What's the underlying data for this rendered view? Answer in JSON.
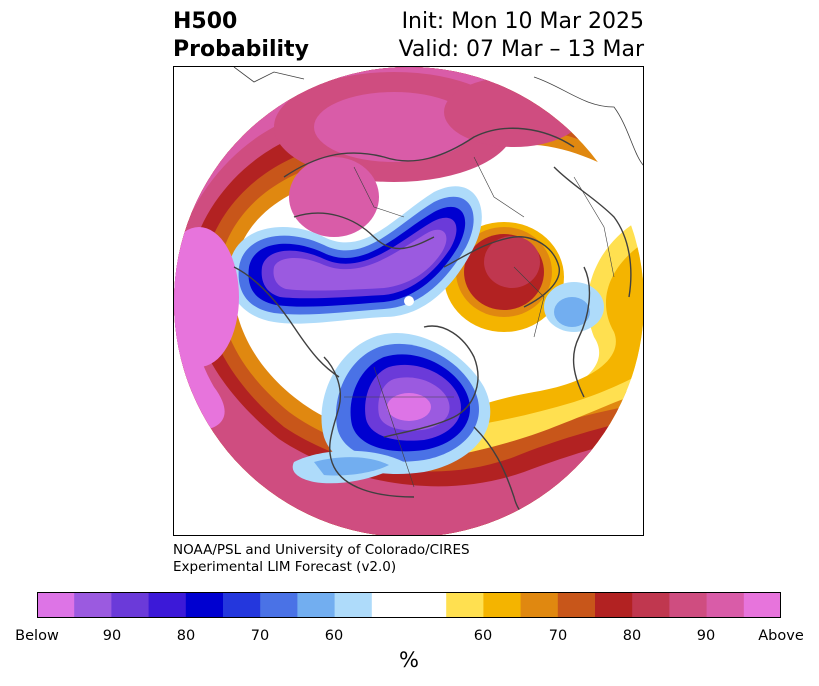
{
  "title": {
    "left_line1": "H500",
    "left_line2": "Probability",
    "right_line1": "Init: Mon 10 Mar 2025",
    "right_line2": "Valid: 07 Mar – 13 Mar"
  },
  "credit": {
    "line1": "NOAA/PSL and University of Colorado/CIRES",
    "line2": "Experimental LIM Forecast (v2.0)"
  },
  "colorbar": {
    "colors": [
      "#dd74e6",
      "#9b5ae0",
      "#6b3ad9",
      "#3c19d8",
      "#0000d0",
      "#2437dd",
      "#4a72e6",
      "#72aef0",
      "#aedbfa",
      "#ffffff",
      "#ffe050",
      "#f4b400",
      "#e08810",
      "#c8561a",
      "#b22222",
      "#c0374f",
      "#cf4d80",
      "#d95ca8",
      "#e774dc"
    ],
    "labels": {
      "below": "Below",
      "b90": "90",
      "b80": "80",
      "b70": "70",
      "b60": "60",
      "a60": "60",
      "a70": "70",
      "a80": "80",
      "a90": "90",
      "above": "Above"
    },
    "unit": "%"
  },
  "palette": {
    "magenta": "#dd74e6",
    "purple": "#9b5ae0",
    "blue_dark": "#0000d0",
    "blue_light": "#aedbfa",
    "yellow": "#ffe050",
    "orange": "#e08810",
    "red": "#b22222",
    "pink": "#d95ca8",
    "coast": "#404040"
  }
}
